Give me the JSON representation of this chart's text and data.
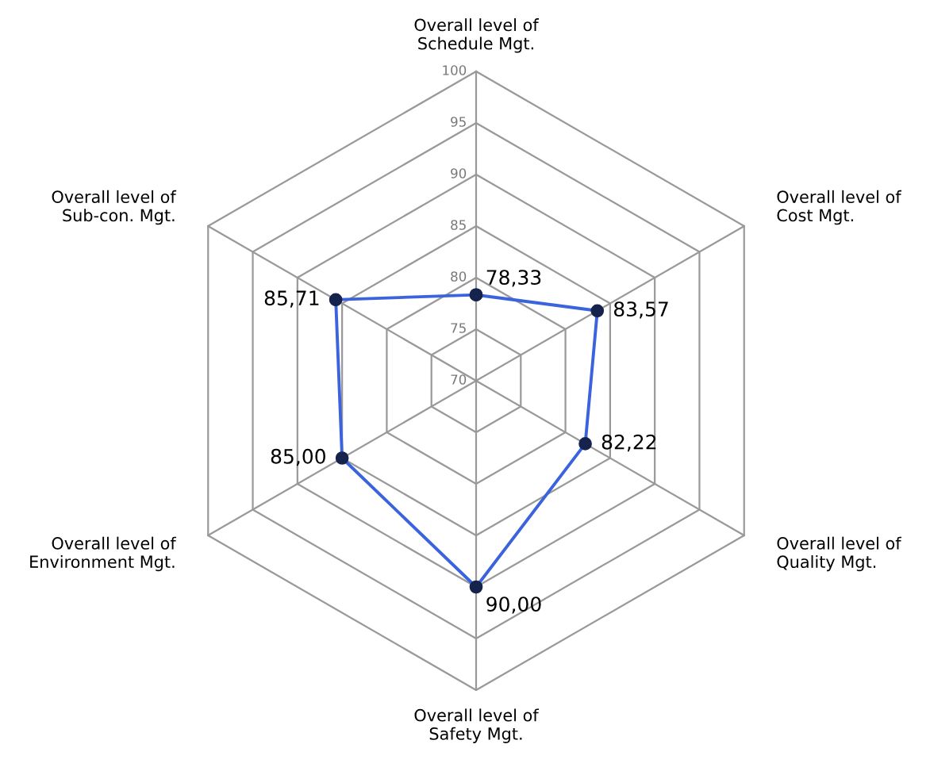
{
  "chart_data": {
    "type": "radar",
    "categories": [
      "Overall level of\nSchedule Mgt.",
      "Overall level of\nCost Mgt.",
      "Overall level of\nQuality Mgt.",
      "Overall level of\nSafety Mgt.",
      "Overall level of\nEnvironment Mgt.",
      "Overall level of\nSub-con. Mgt."
    ],
    "series": [
      {
        "color": "#3b63dd",
        "values": [
          78.33,
          83.57,
          82.22,
          90.0,
          85.0,
          85.71
        ],
        "value_labels": [
          "78,33",
          "83,57",
          "82,22",
          "90,00",
          "85,00",
          "85,71"
        ]
      }
    ],
    "ylim": [
      70,
      100
    ],
    "yticks": [
      70,
      75,
      80,
      85,
      90,
      95,
      100
    ],
    "grid": true,
    "marker": "circle"
  }
}
